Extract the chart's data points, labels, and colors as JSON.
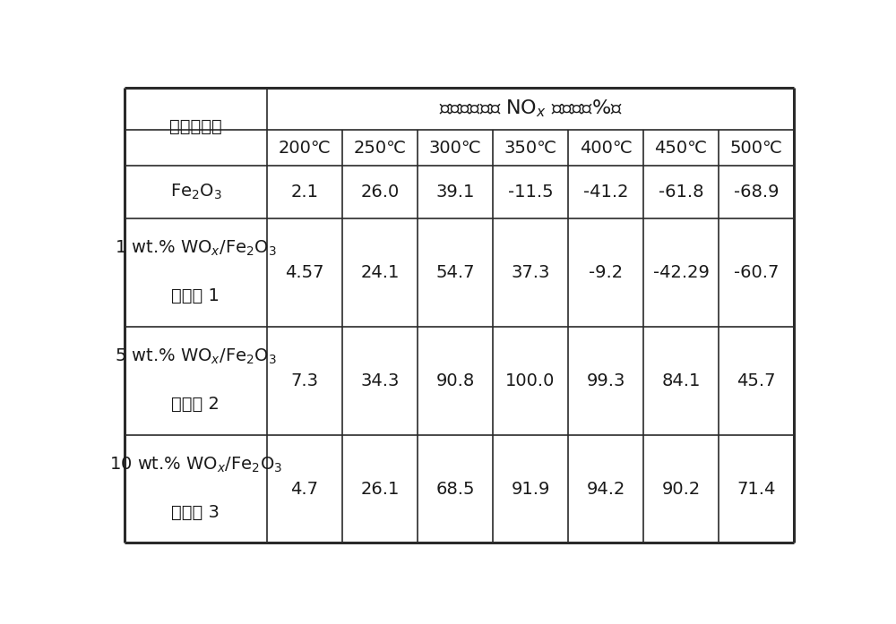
{
  "header_col0": "催化剖编号",
  "temp_labels": [
    "200℃",
    "250℃",
    "300℃",
    "350℃",
    "400℃",
    "450℃",
    "500℃"
  ],
  "rows": [
    {
      "label_line1": "Fe_2O_3",
      "label_line2": "",
      "values": [
        "2.1",
        "26.0",
        "39.1",
        "-11.5",
        "-41.2",
        "-61.8",
        "-68.9"
      ]
    },
    {
      "label_line1": "1 wt.% WO_x/Fe_2O_3",
      "label_line2": "实施例 1",
      "values": [
        "4.57",
        "24.1",
        "54.7",
        "37.3",
        "-9.2",
        "-42.29",
        "-60.7"
      ]
    },
    {
      "label_line1": "5 wt.% WO_x/Fe_2O_3",
      "label_line2": "实施例 2",
      "values": [
        "7.3",
        "34.3",
        "90.8",
        "100.0",
        "99.3",
        "84.1",
        "45.7"
      ]
    },
    {
      "label_line1": "10 wt.% WO_x/Fe_2O_3",
      "label_line2": "实施例 3",
      "values": [
        "4.7",
        "26.1",
        "68.5",
        "91.9",
        "94.2",
        "90.2",
        "71.4"
      ]
    }
  ],
  "bg_color": "#ffffff",
  "text_color": "#1a1a1a",
  "line_color": "#2a2a2a",
  "font_size_header": 16,
  "font_size_sub": 14,
  "font_size_cell": 14
}
